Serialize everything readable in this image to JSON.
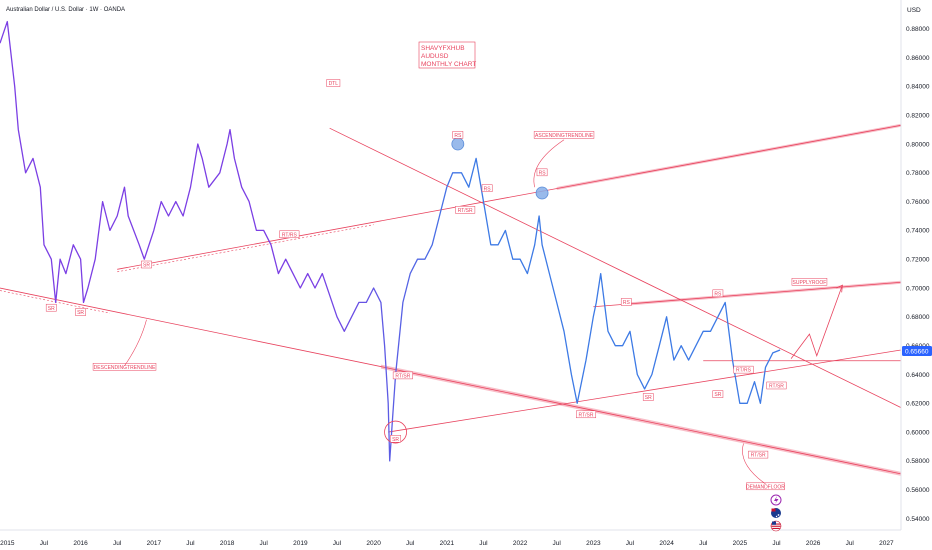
{
  "header": {
    "title": "Australian Dollar / U.S. Dollar · 1W · OANDA"
  },
  "price_axis": {
    "currency": "USD",
    "current_price_label": "0.65660"
  },
  "annotation": {
    "lines": [
      "SHAVYFXHUB",
      "AUDUSD",
      "MONTHLY CHART"
    ]
  },
  "colors": {
    "price_line_start": "#7b3fe4",
    "price_line_end": "#3d7ae5",
    "trendline": "#e8435e",
    "zone_fill": "#f5a8b5",
    "circle_fill": "#87aee8",
    "price_badge": "#2962ff"
  },
  "icons": [
    "lightning-icon",
    "australia-flag-icon",
    "usa-flag-icon"
  ],
  "chart_data": {
    "type": "line",
    "title": "Australian Dollar / U.S. Dollar · 1W · OANDA",
    "xlabel": "",
    "ylabel": "USD",
    "ylim": [
      0.532,
      0.9
    ],
    "xlim": [
      2014.9,
      2027.2
    ],
    "grid": false,
    "x_ticks": [
      "2015",
      "Jul",
      "2016",
      "Jul",
      "2017",
      "Jul",
      "2018",
      "Jul",
      "2019",
      "Jul",
      "2020",
      "Jul",
      "2021",
      "Jul",
      "2022",
      "Jul",
      "2023",
      "Jul",
      "2024",
      "Jul",
      "2025",
      "Jul",
      "2026",
      "Jul",
      "2027"
    ],
    "y_ticks": [
      "0.88000",
      "0.86000",
      "0.84000",
      "0.82000",
      "0.80000",
      "0.78000",
      "0.76000",
      "0.74000",
      "0.72000",
      "0.70000",
      "0.68000",
      "0.66000",
      "0.64000",
      "0.62000",
      "0.60000",
      "0.58000",
      "0.56000",
      "0.54000"
    ],
    "series": [
      {
        "x": [
          2014.9,
          2015.0,
          2015.1,
          2015.15,
          2015.25,
          2015.35,
          2015.45,
          2015.5,
          2015.6,
          2015.66,
          2015.72,
          2015.8,
          2015.9,
          2016.0,
          2016.04,
          2016.1,
          2016.2,
          2016.3,
          2016.4,
          2016.5,
          2016.6,
          2016.65,
          2016.8,
          2016.87,
          2017.0,
          2017.1,
          2017.2,
          2017.3,
          2017.4,
          2017.5,
          2017.6,
          2017.66,
          2017.75,
          2017.9,
          2018.0,
          2018.04,
          2018.1,
          2018.2,
          2018.3,
          2018.4,
          2018.5,
          2018.6,
          2018.7,
          2018.8,
          2018.9,
          2019.0,
          2019.1,
          2019.2,
          2019.3,
          2019.5,
          2019.6,
          2019.8,
          2019.9,
          2020.0,
          2020.1,
          2020.15,
          2020.2,
          2020.22,
          2020.26,
          2020.3,
          2020.4,
          2020.5,
          2020.6,
          2020.7,
          2020.8,
          2020.9,
          2021.0,
          2021.08,
          2021.12,
          2021.2,
          2021.3,
          2021.4,
          2021.5,
          2021.6,
          2021.7,
          2021.8,
          2021.9,
          2022.0,
          2022.1,
          2022.2,
          2022.26,
          2022.3,
          2022.4,
          2022.5,
          2022.6,
          2022.7,
          2022.78,
          2022.9,
          2023.0,
          2023.04,
          2023.1,
          2023.2,
          2023.3,
          2023.4,
          2023.5,
          2023.6,
          2023.7,
          2023.8,
          2023.9,
          2024.0,
          2024.1,
          2024.2,
          2024.3,
          2024.4,
          2024.5,
          2024.6,
          2024.7,
          2024.8,
          2024.9,
          2025.0,
          2025.1,
          2025.2,
          2025.28,
          2025.35,
          2025.45,
          2025.55
        ],
        "values": [
          0.87,
          0.885,
          0.84,
          0.81,
          0.78,
          0.79,
          0.77,
          0.73,
          0.72,
          0.69,
          0.72,
          0.71,
          0.73,
          0.72,
          0.69,
          0.7,
          0.72,
          0.76,
          0.74,
          0.75,
          0.77,
          0.75,
          0.73,
          0.72,
          0.74,
          0.76,
          0.75,
          0.76,
          0.75,
          0.77,
          0.8,
          0.79,
          0.77,
          0.78,
          0.8,
          0.81,
          0.79,
          0.77,
          0.76,
          0.74,
          0.74,
          0.73,
          0.71,
          0.72,
          0.71,
          0.7,
          0.71,
          0.7,
          0.71,
          0.68,
          0.67,
          0.69,
          0.69,
          0.7,
          0.69,
          0.66,
          0.62,
          0.58,
          0.61,
          0.64,
          0.69,
          0.71,
          0.72,
          0.72,
          0.73,
          0.75,
          0.77,
          0.78,
          0.78,
          0.78,
          0.77,
          0.79,
          0.76,
          0.73,
          0.73,
          0.74,
          0.72,
          0.72,
          0.71,
          0.73,
          0.75,
          0.73,
          0.71,
          0.69,
          0.67,
          0.64,
          0.62,
          0.65,
          0.68,
          0.69,
          0.71,
          0.67,
          0.66,
          0.66,
          0.67,
          0.64,
          0.63,
          0.64,
          0.66,
          0.68,
          0.65,
          0.66,
          0.65,
          0.66,
          0.67,
          0.67,
          0.68,
          0.69,
          0.65,
          0.62,
          0.62,
          0.635,
          0.62,
          0.645,
          0.655,
          0.657
        ]
      }
    ],
    "trendlines": [
      {
        "label": "DESCENDINGTRENDLINE",
        "x": [
          2014.9,
          2027.2
        ],
        "values": [
          0.7,
          0.571
        ]
      },
      {
        "label": "ASCENDINGTRENDLINE",
        "x": [
          2016.5,
          2027.2
        ],
        "values": [
          0.713,
          0.813
        ]
      },
      {
        "label": "DTL",
        "x": [
          2019.4,
          2027.2
        ],
        "values": [
          0.811,
          0.617
        ]
      },
      {
        "label": "SUPPLYROOF",
        "x": [
          2023.0,
          2027.2
        ],
        "values": [
          0.687,
          0.704
        ]
      },
      {
        "label": "",
        "x": [
          2020.2,
          2027.2
        ],
        "values": [
          0.6,
          0.657
        ]
      },
      {
        "label": "",
        "x": [
          2024.5,
          2027.2
        ],
        "values": [
          0.6495,
          0.6495
        ]
      }
    ],
    "annotations": [
      {
        "text": "SR",
        "x": 2015.6,
        "y": 0.686
      },
      {
        "text": "SR",
        "x": 2016.0,
        "y": 0.683
      },
      {
        "text": "SR",
        "x": 2016.9,
        "y": 0.716
      },
      {
        "text": "RT/RS",
        "x": 2018.85,
        "y": 0.737
      },
      {
        "text": "RT/SR",
        "x": 2020.4,
        "y": 0.639
      },
      {
        "text": "SR",
        "x": 2020.3,
        "y": 0.595
      },
      {
        "text": "RS",
        "x": 2021.15,
        "y": 0.806
      },
      {
        "text": "RS",
        "x": 2021.55,
        "y": 0.769
      },
      {
        "text": "RT/SR",
        "x": 2021.25,
        "y": 0.754
      },
      {
        "text": "RS",
        "x": 2022.3,
        "y": 0.78
      },
      {
        "text": "ASCENDINGTRENDLINE",
        "x": 2022.6,
        "y": 0.806
      },
      {
        "text": "DTL",
        "x": 2019.45,
        "y": 0.842
      },
      {
        "text": "DESCENDINGTRENDLINE",
        "x": 2016.6,
        "y": 0.645
      },
      {
        "text": "RT/SR",
        "x": 2022.9,
        "y": 0.612
      },
      {
        "text": "SR",
        "x": 2023.75,
        "y": 0.624
      },
      {
        "text": "RS",
        "x": 2023.45,
        "y": 0.69
      },
      {
        "text": "RS",
        "x": 2024.7,
        "y": 0.696
      },
      {
        "text": "SR",
        "x": 2024.7,
        "y": 0.626
      },
      {
        "text": "RT/RS",
        "x": 2025.05,
        "y": 0.643
      },
      {
        "text": "RT/SR",
        "x": 2025.5,
        "y": 0.632
      },
      {
        "text": "RT/SR",
        "x": 2025.25,
        "y": 0.584
      },
      {
        "text": "DEMANDFLOOR",
        "x": 2025.35,
        "y": 0.562
      },
      {
        "text": "SUPPLYROOF",
        "x": 2025.95,
        "y": 0.704
      }
    ]
  }
}
